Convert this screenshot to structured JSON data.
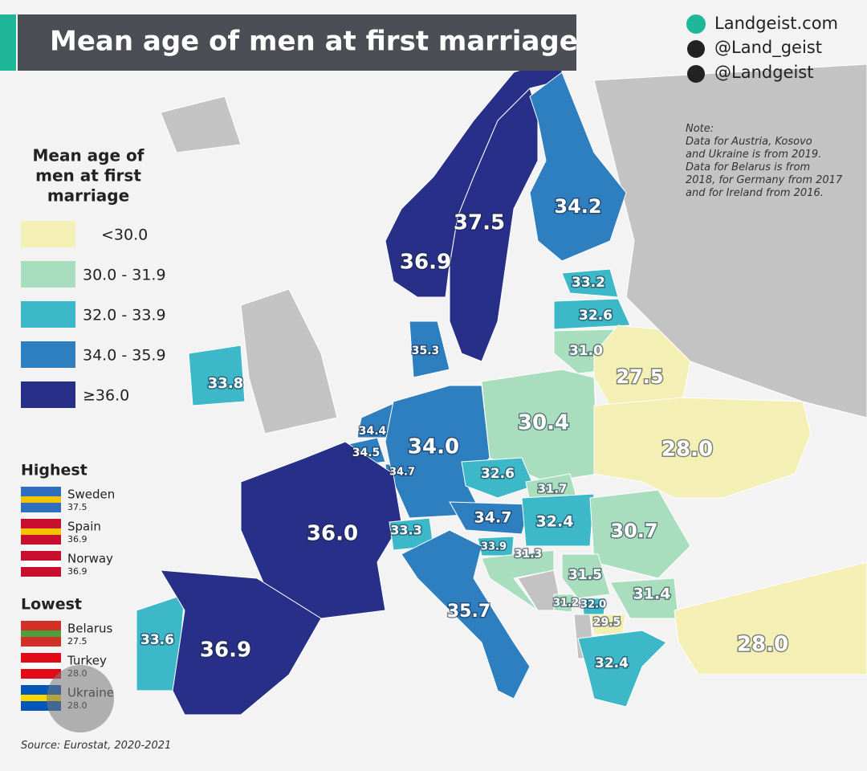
{
  "title": "Mean age of men at first marriage",
  "social": [
    "Landgeist.com",
    "@Land_geist",
    "@Landgeist"
  ],
  "note": [
    "Note:",
    "Data for Austria, Kosovo",
    "and Ukraine is from 2019.",
    "Data for Belarus is from",
    "2018, for Germany from 2017",
    "and for Ireland from 2016."
  ],
  "legend": {
    "title": [
      "Mean age of",
      "men at first",
      "marriage"
    ],
    "items": [
      {
        "label": "<30.0",
        "color": "#f3efb5"
      },
      {
        "label": "30.0 - 31.9",
        "color": "#a8ddbd"
      },
      {
        "label": "32.0 - 33.9",
        "color": "#3cb8c8"
      },
      {
        "label": "34.0 - 35.9",
        "color": "#2e7fbf"
      },
      {
        "label": "≥36.0",
        "color": "#272f88"
      }
    ]
  },
  "highest": {
    "title": "Highest",
    "items": [
      {
        "name": "Sweden",
        "value": "37.5"
      },
      {
        "name": "Spain",
        "value": "36.9"
      },
      {
        "name": "Norway",
        "value": "36.9"
      }
    ]
  },
  "lowest": {
    "title": "Lowest",
    "items": [
      {
        "name": "Belarus",
        "value": "27.5"
      },
      {
        "name": "Turkey",
        "value": "28.0"
      },
      {
        "name": "Ukraine",
        "value": "28.0"
      }
    ]
  },
  "source": "Source: Eurostat, 2020-2021",
  "countries": [
    {
      "label": "37.5",
      "color": "#272f88"
    },
    {
      "label": "36.9",
      "color": "#272f88"
    },
    {
      "label": "34.2",
      "color": "#2e7fbf"
    },
    {
      "label": "33.2",
      "color": "#3cb8c8"
    },
    {
      "label": "32.6",
      "color": "#3cb8c8"
    },
    {
      "label": "31.0",
      "color": "#a8ddbd"
    },
    {
      "label": "27.5",
      "color": "#f3efb5"
    },
    {
      "label": "35.3",
      "color": "#2e7fbf"
    },
    {
      "label": "33.8",
      "color": "#3cb8c8"
    },
    {
      "label": "34.4",
      "color": "#2e7fbf"
    },
    {
      "label": "34.5",
      "color": "#2e7fbf"
    },
    {
      "label": "34.7",
      "color": "#2e7fbf"
    },
    {
      "label": "34.0",
      "color": "#2e7fbf"
    },
    {
      "label": "30.4",
      "color": "#a8ddbd"
    },
    {
      "label": "28.0",
      "color": "#f3efb5"
    },
    {
      "label": "32.6",
      "color": "#3cb8c8"
    },
    {
      "label": "31.7",
      "color": "#a8ddbd"
    },
    {
      "label": "34.7",
      "color": "#2e7fbf"
    },
    {
      "label": "32.4",
      "color": "#3cb8c8"
    },
    {
      "label": "30.7",
      "color": "#a8ddbd"
    },
    {
      "label": "36.0",
      "color": "#272f88"
    },
    {
      "label": "33.3",
      "color": "#3cb8c8"
    },
    {
      "label": "33.9",
      "color": "#3cb8c8"
    },
    {
      "label": "31.3",
      "color": "#a8ddbd"
    },
    {
      "label": "31.5",
      "color": "#a8ddbd"
    },
    {
      "label": "31.4",
      "color": "#a8ddbd"
    },
    {
      "label": "31.2",
      "color": "#a8ddbd"
    },
    {
      "label": "32.0",
      "color": "#3cb8c8"
    },
    {
      "label": "29.5",
      "color": "#f3efb5"
    },
    {
      "label": "35.7",
      "color": "#2e7fbf"
    },
    {
      "label": "32.4",
      "color": "#3cb8c8"
    },
    {
      "label": "28.0",
      "color": "#f3efb5"
    },
    {
      "label": "33.6",
      "color": "#3cb8c8"
    },
    {
      "label": "36.9",
      "color": "#272f88"
    }
  ]
}
